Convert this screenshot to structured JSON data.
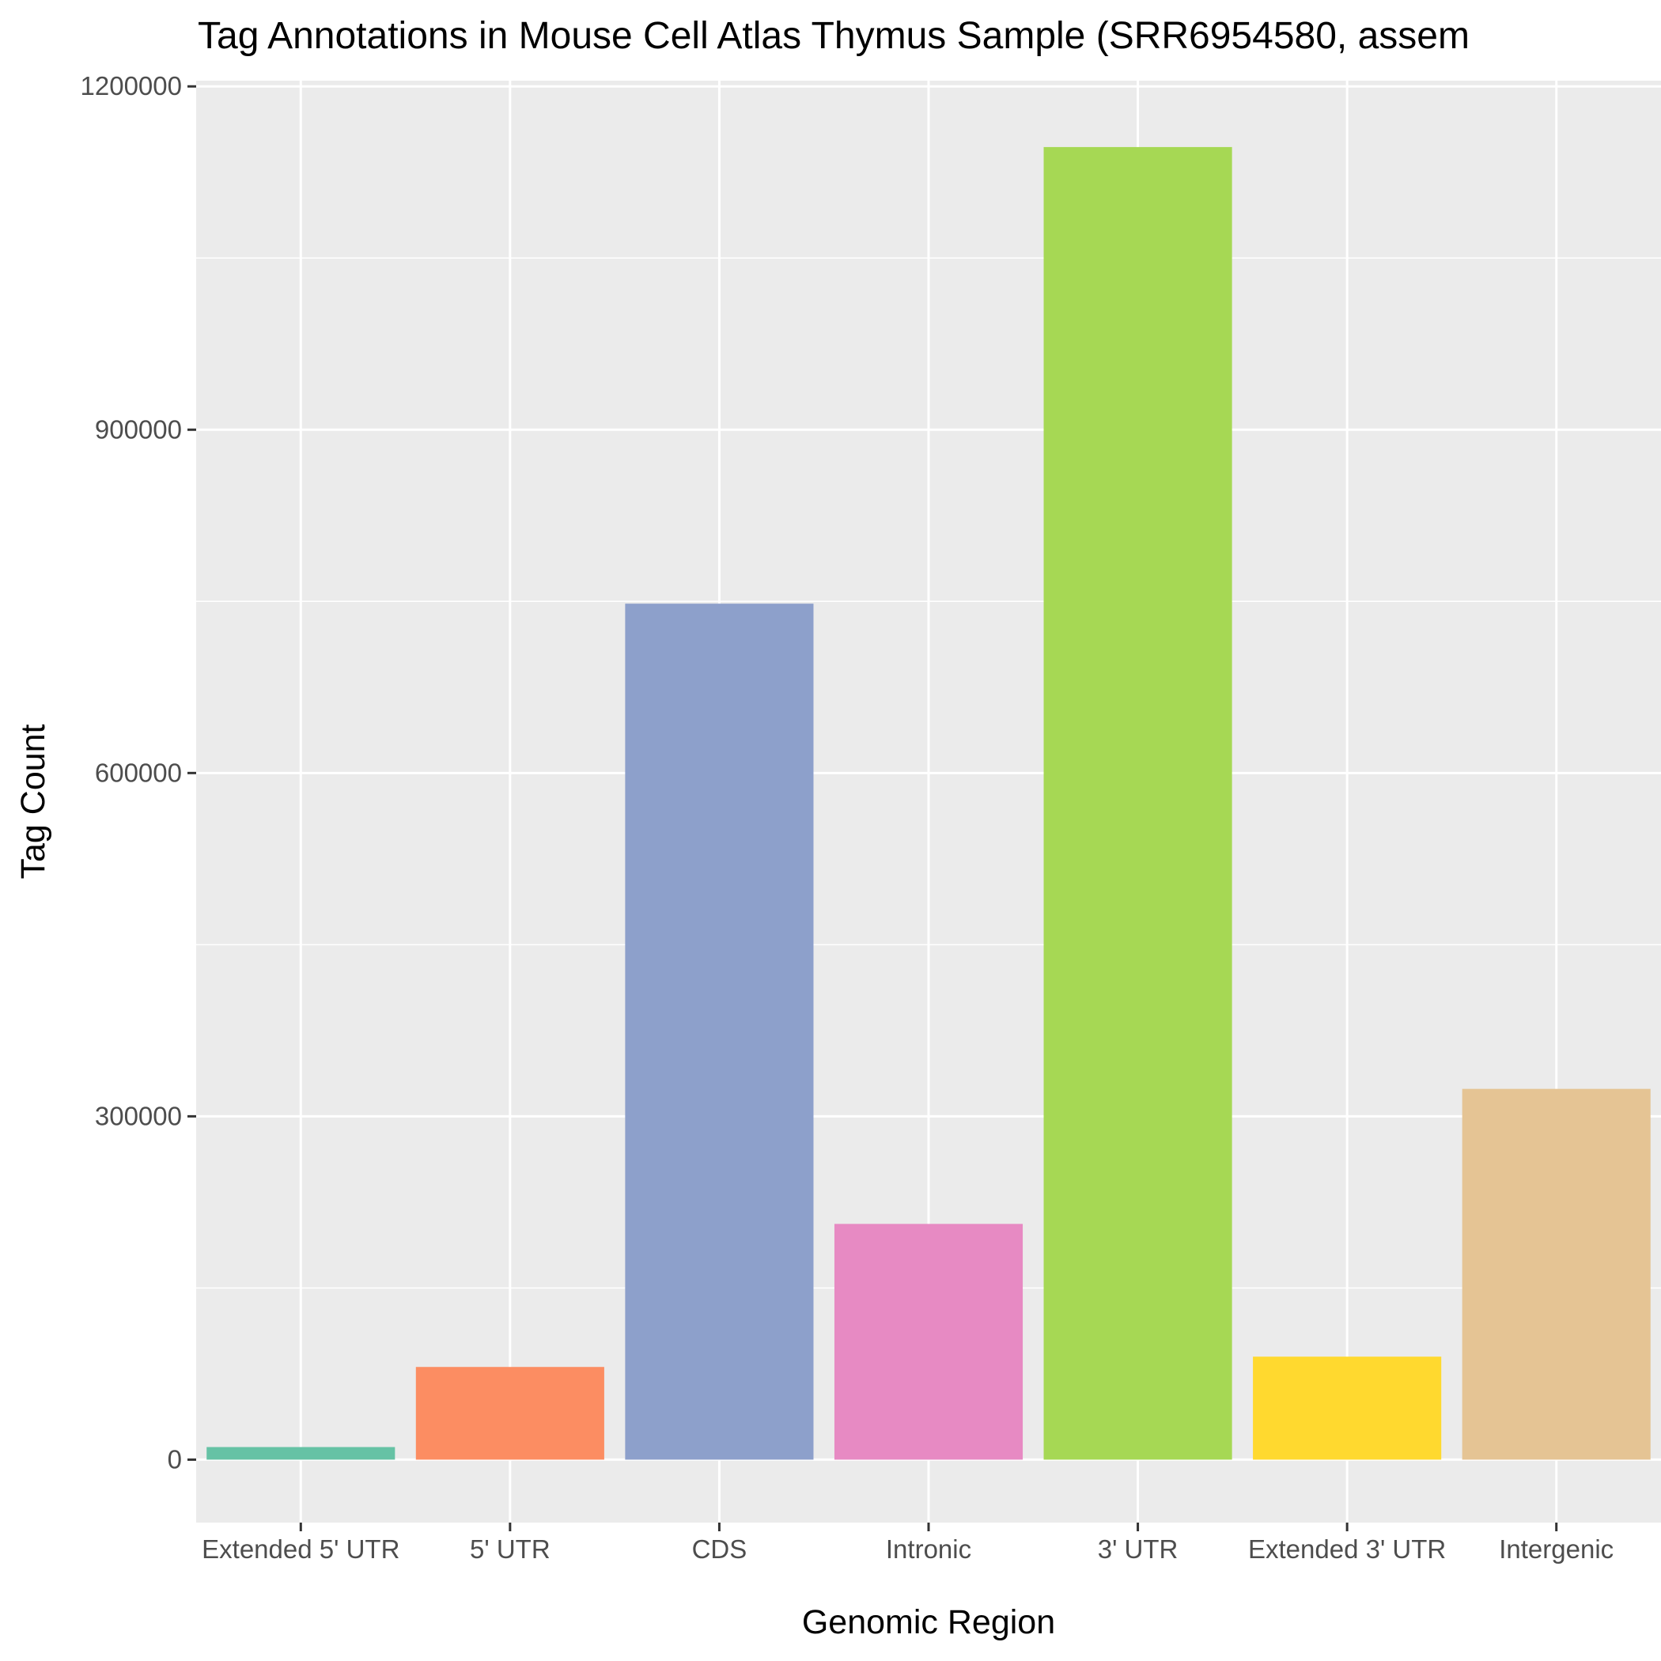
{
  "chart_data": {
    "type": "bar",
    "title": "Tag Annotations in Mouse Cell Atlas Thymus Sample (SRR6954580, assem",
    "xlabel": "Genomic Region",
    "ylabel": "Tag Count",
    "categories": [
      "Extended 5' UTR",
      "5' UTR",
      "CDS",
      "Intronic",
      "3' UTR",
      "Extended 3' UTR",
      "Intergenic"
    ],
    "values": [
      11000,
      81000,
      748000,
      206000,
      1147000,
      90000,
      324000
    ],
    "colors": [
      "#66c2a5",
      "#fc8d62",
      "#8da0cb",
      "#e78ac3",
      "#a6d854",
      "#ffd92f",
      "#e5c494"
    ],
    "ylim": [
      -55000,
      1205000
    ],
    "yticks": [
      0,
      300000,
      600000,
      900000,
      1200000
    ],
    "ytick_labels": [
      "0",
      "300000",
      "600000",
      "900000",
      "1200000"
    ],
    "grid": true,
    "panel_background": "#ebebeb",
    "legend": "none"
  }
}
